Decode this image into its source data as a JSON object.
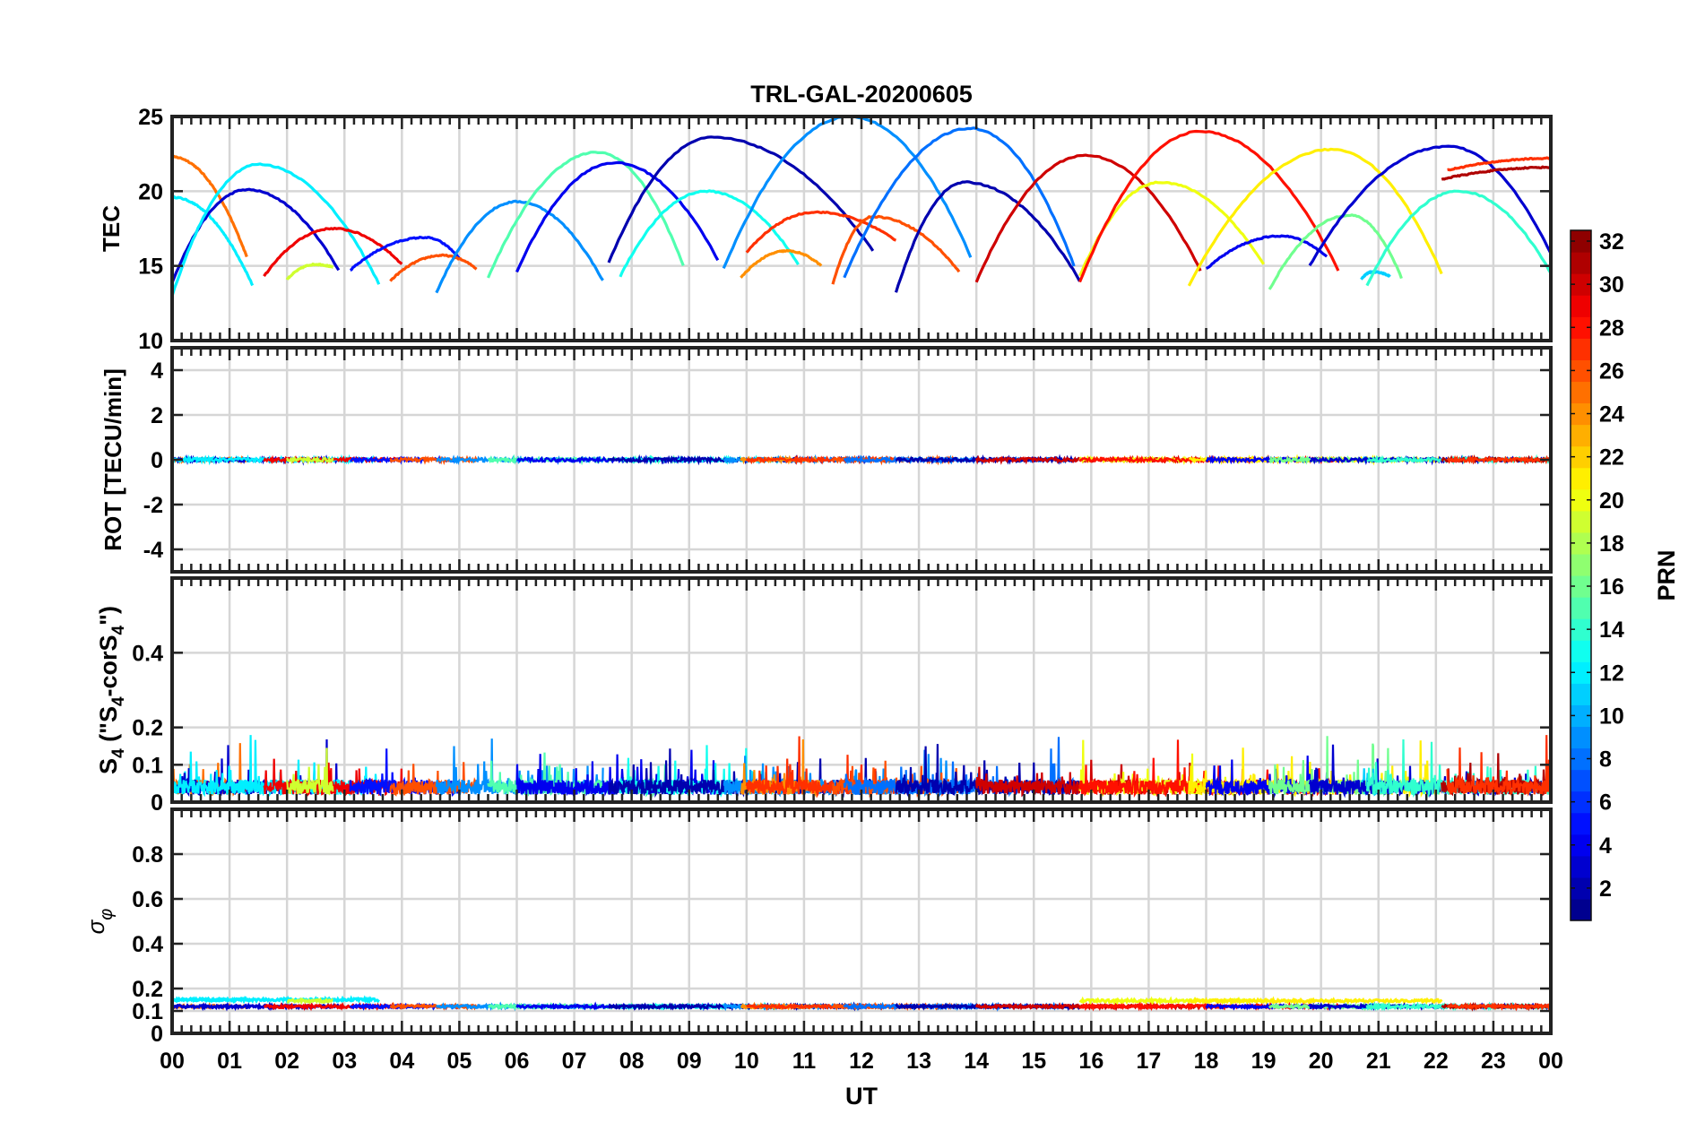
{
  "chart_data": {
    "type": "line",
    "title": "TRL-GAL-20200605",
    "xlabel": "UT",
    "x_tick_labels": [
      "00",
      "01",
      "02",
      "03",
      "04",
      "05",
      "06",
      "07",
      "08",
      "09",
      "10",
      "11",
      "12",
      "13",
      "14",
      "15",
      "16",
      "17",
      "18",
      "19",
      "20",
      "21",
      "22",
      "23",
      "00"
    ],
    "xlim": [
      0,
      24
    ],
    "grid": true,
    "colorbar": {
      "label": "PRN",
      "range": [
        1,
        32
      ],
      "ticks": [
        "2",
        "4",
        "6",
        "8",
        "10",
        "12",
        "14",
        "16",
        "18",
        "20",
        "22",
        "24",
        "26",
        "28",
        "30",
        "32"
      ],
      "colormap": "jet",
      "placement": "right"
    },
    "panels": [
      {
        "id": "tec",
        "ylabel": "TEC",
        "ylim": [
          10,
          25
        ],
        "y_ticks": [
          "10",
          "15",
          "20",
          "25"
        ],
        "arcs": [
          {
            "prn": 12,
            "start": 0.0,
            "end": 1.4,
            "peak_t": 0.0,
            "peak_v": 19.6,
            "end_v": 13.7
          },
          {
            "prn": 25,
            "start": 0.0,
            "end": 1.3,
            "peak_t": 0.0,
            "peak_v": 22.3,
            "end_v": 15.6
          },
          {
            "prn": 3,
            "start": 0.0,
            "end": 2.9,
            "peak_t": 1.3,
            "peak_v": 20.1,
            "end_v": 14.7
          },
          {
            "prn": 12,
            "start": 0.0,
            "end": 3.6,
            "peak_t": 1.5,
            "peak_v": 21.8,
            "end_v": 13.8
          },
          {
            "prn": 29,
            "start": 1.6,
            "end": 4.0,
            "peak_t": 2.8,
            "peak_v": 17.5,
            "end_v": 15.1
          },
          {
            "prn": 19,
            "start": 2.0,
            "end": 2.8,
            "peak_t": 2.5,
            "peak_v": 15.1,
            "end_v": 14.9
          },
          {
            "prn": 5,
            "start": 3.1,
            "end": 5.0,
            "peak_t": 4.4,
            "peak_v": 16.9,
            "end_v": 15.5
          },
          {
            "prn": 26,
            "start": 3.8,
            "end": 5.3,
            "peak_t": 4.7,
            "peak_v": 15.7,
            "end_v": 14.8
          },
          {
            "prn": 9,
            "start": 4.6,
            "end": 7.5,
            "peak_t": 6.0,
            "peak_v": 19.3,
            "end_v": 14.0
          },
          {
            "prn": 15,
            "start": 5.5,
            "end": 8.9,
            "peak_t": 7.4,
            "peak_v": 22.6,
            "end_v": 15.0
          },
          {
            "prn": 4,
            "start": 6.0,
            "end": 9.5,
            "peak_t": 7.7,
            "peak_v": 21.9,
            "end_v": 15.4
          },
          {
            "prn": 13,
            "start": 7.8,
            "end": 10.9,
            "peak_t": 9.3,
            "peak_v": 20.0,
            "end_v": 15.1
          },
          {
            "prn": 2,
            "start": 7.6,
            "end": 12.2,
            "peak_t": 9.4,
            "peak_v": 23.6,
            "end_v": 16.0
          },
          {
            "prn": 9,
            "start": 9.6,
            "end": 13.9,
            "peak_t": 11.8,
            "peak_v": 25.0,
            "end_v": 15.6
          },
          {
            "prn": 24,
            "start": 9.9,
            "end": 11.3,
            "peak_t": 10.7,
            "peak_v": 16.0,
            "end_v": 15.0
          },
          {
            "prn": 27,
            "start": 10.0,
            "end": 12.6,
            "peak_t": 11.2,
            "peak_v": 18.6,
            "end_v": 16.7
          },
          {
            "prn": 26,
            "start": 11.5,
            "end": 13.7,
            "peak_t": 12.2,
            "peak_v": 18.3,
            "end_v": 14.6
          },
          {
            "prn": 8,
            "start": 11.7,
            "end": 15.7,
            "peak_t": 13.9,
            "peak_v": 24.2,
            "end_v": 15.0
          },
          {
            "prn": 2,
            "start": 12.6,
            "end": 15.8,
            "peak_t": 13.8,
            "peak_v": 20.6,
            "end_v": 14.0
          },
          {
            "prn": 30,
            "start": 14.0,
            "end": 17.9,
            "peak_t": 15.9,
            "peak_v": 22.4,
            "end_v": 14.7
          },
          {
            "prn": 20,
            "start": 15.8,
            "end": 19.0,
            "peak_t": 17.2,
            "peak_v": 20.6,
            "end_v": 15.1
          },
          {
            "prn": 28,
            "start": 15.8,
            "end": 20.3,
            "peak_t": 17.9,
            "peak_v": 24.0,
            "end_v": 14.7
          },
          {
            "prn": 21,
            "start": 17.7,
            "end": 22.1,
            "peak_t": 20.2,
            "peak_v": 22.8,
            "end_v": 14.5
          },
          {
            "prn": 4,
            "start": 18.0,
            "end": 20.1,
            "peak_t": 19.3,
            "peak_v": 17.0,
            "end_v": 15.6
          },
          {
            "prn": 16,
            "start": 19.1,
            "end": 21.4,
            "peak_t": 20.5,
            "peak_v": 18.4,
            "end_v": 14.2
          },
          {
            "prn": 11,
            "start": 20.7,
            "end": 21.2,
            "peak_t": 20.9,
            "peak_v": 14.6,
            "end_v": 14.3
          },
          {
            "prn": 3,
            "start": 19.8,
            "end": 24.0,
            "peak_t": 22.2,
            "peak_v": 23.0,
            "end_v": 15.8
          },
          {
            "prn": 14,
            "start": 20.8,
            "end": 24.0,
            "peak_t": 22.4,
            "peak_v": 20.0,
            "end_v": 14.5
          },
          {
            "prn": 31,
            "start": 22.1,
            "end": 24.0,
            "peak_t": 24.0,
            "peak_v": 21.6,
            "end_v": 21.6
          },
          {
            "prn": 27,
            "start": 22.2,
            "end": 24.0,
            "peak_t": 24.0,
            "peak_v": 22.2,
            "end_v": 22.2
          }
        ]
      },
      {
        "id": "rot",
        "ylabel": "ROT [TECU/min]",
        "ylim": [
          -5,
          5
        ],
        "y_ticks": [
          "-4",
          "-2",
          "0",
          "2",
          "4"
        ],
        "baseline": 0.0,
        "noise_amplitude": 0.08
      },
      {
        "id": "s4",
        "ylabel": "S4 (\"S4-corS4\")",
        "ylim": [
          0,
          0.6
        ],
        "y_ticks": [
          "0",
          "0.1",
          "0.2",
          "0.4"
        ],
        "typical_range": [
          0.0,
          0.1
        ],
        "peak_max": 0.2
      },
      {
        "id": "sigma_phi",
        "ylabel": "σφ",
        "ylim": [
          0,
          1
        ],
        "y_ticks": [
          "0",
          "0.1",
          "0.2",
          "0.4",
          "0.6",
          "0.8"
        ],
        "typical_value": 0.12
      }
    ]
  }
}
